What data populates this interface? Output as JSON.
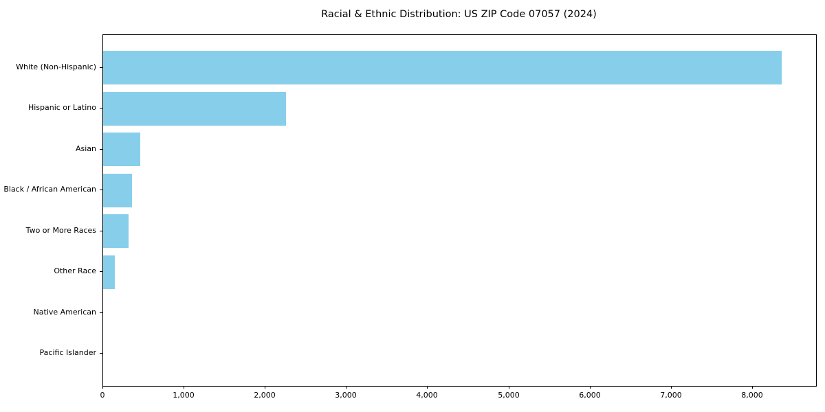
{
  "chart_data": {
    "type": "bar",
    "orientation": "horizontal",
    "title": "Racial & Ethnic Distribution: US ZIP Code 07057 (2024)",
    "categories": [
      "White (Non-Hispanic)",
      "Hispanic or Latino",
      "Asian",
      "Black / African American",
      "Two or More Races",
      "Other Race",
      "Native American",
      "Pacific Islander"
    ],
    "values": [
      8360,
      2250,
      460,
      355,
      315,
      140,
      0,
      0
    ],
    "xlabel": "",
    "ylabel": "",
    "xlim": [
      0,
      8780
    ],
    "x_ticks": [
      0,
      1000,
      2000,
      3000,
      4000,
      5000,
      6000,
      7000,
      8000
    ],
    "x_tick_labels": [
      "0",
      "1,000",
      "2,000",
      "3,000",
      "4,000",
      "5,000",
      "6,000",
      "7,000",
      "8,000"
    ],
    "grid": false,
    "legend": null,
    "bar_color": "#87CEEB",
    "spine_color": "#000000",
    "background_color": "#ffffff"
  }
}
